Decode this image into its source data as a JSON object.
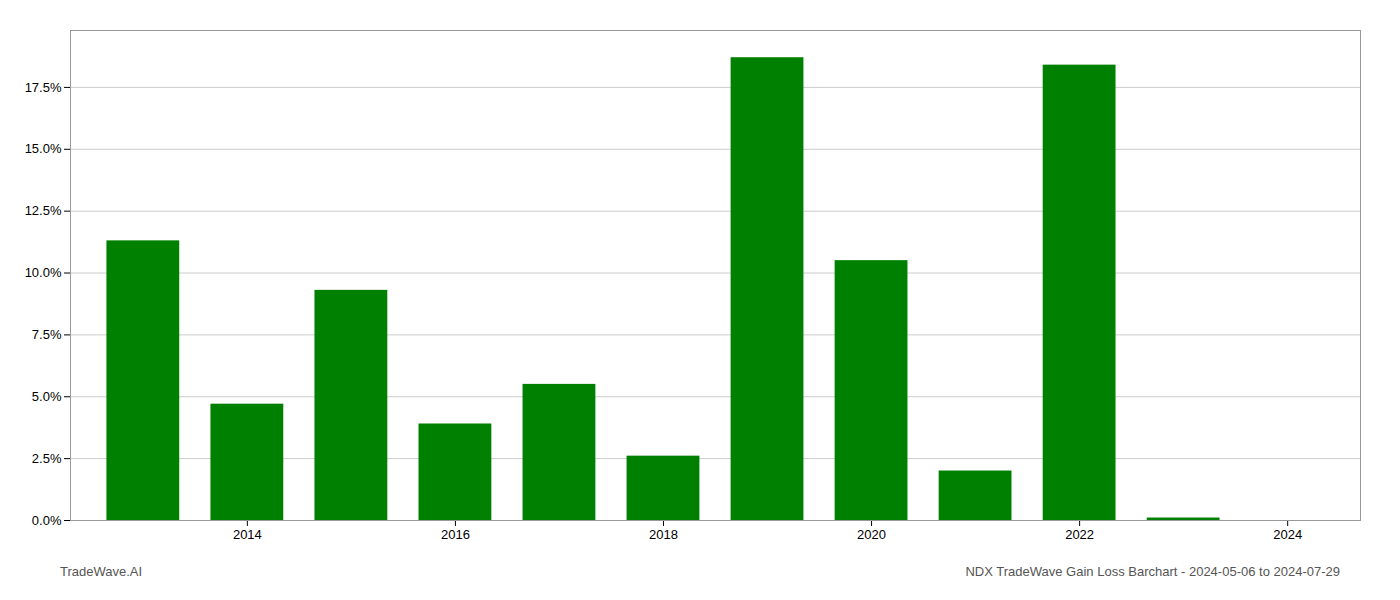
{
  "chart_data": {
    "type": "bar",
    "x": [
      2013,
      2014,
      2015,
      2016,
      2017,
      2018,
      2019,
      2020,
      2021,
      2022,
      2023
    ],
    "values": [
      0.113,
      0.047,
      0.093,
      0.039,
      0.055,
      0.026,
      0.187,
      0.105,
      0.02,
      0.184,
      0.001
    ],
    "color": "#008000",
    "xlim": [
      2012.3,
      2024.7
    ],
    "xticks": [
      2014,
      2016,
      2018,
      2020,
      2022,
      2024
    ],
    "ylim": [
      0,
      0.198
    ],
    "yticks": [
      {
        "value": 0.0,
        "label": "0.0%"
      },
      {
        "value": 0.025,
        "label": "2.5%"
      },
      {
        "value": 0.05,
        "label": "5.0%"
      },
      {
        "value": 0.075,
        "label": "7.5%"
      },
      {
        "value": 0.1,
        "label": "10.0%"
      },
      {
        "value": 0.125,
        "label": "12.5%"
      },
      {
        "value": 0.15,
        "label": "15.0%"
      },
      {
        "value": 0.175,
        "label": "17.5%"
      }
    ],
    "grid": true,
    "annotations": [
      "TradeWave.AI",
      "NDX TradeWave Gain Loss Barchart - 2024-05-06 to 2024-07-29"
    ]
  }
}
